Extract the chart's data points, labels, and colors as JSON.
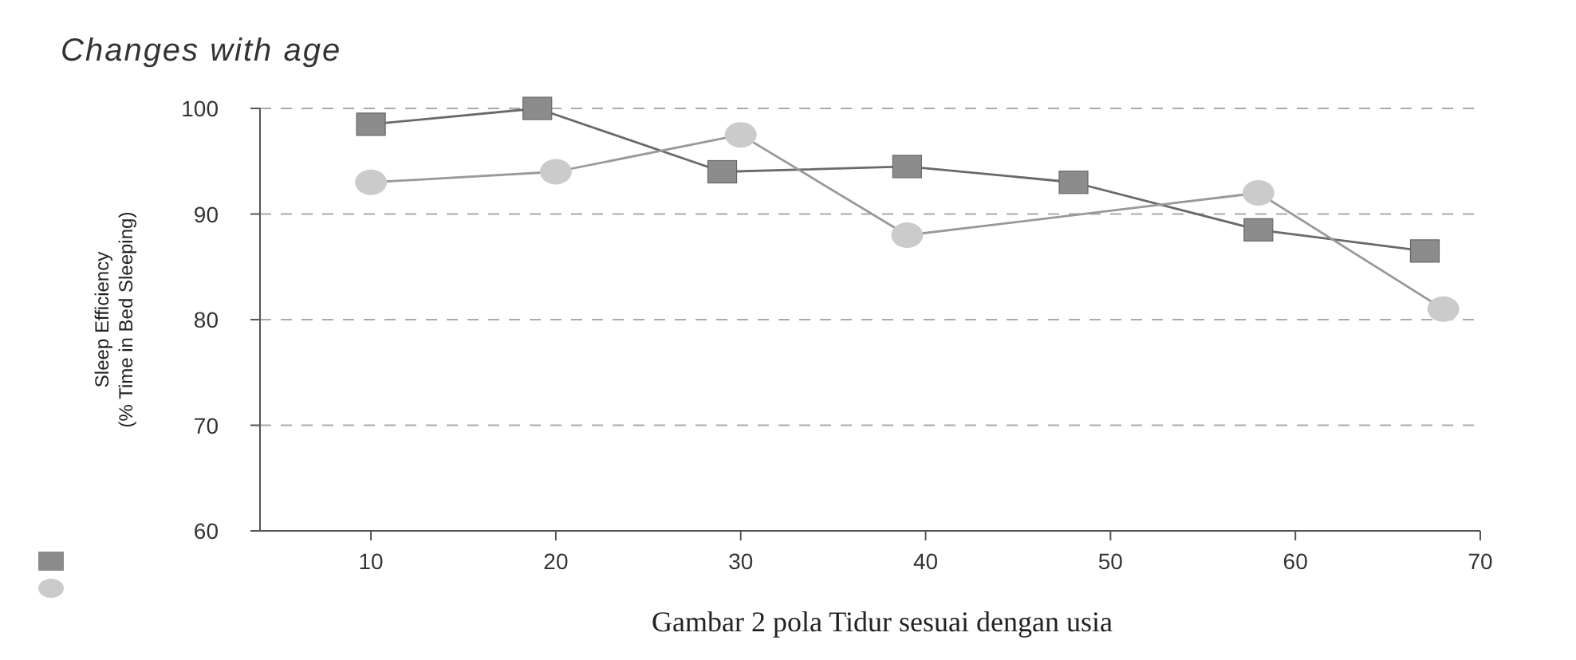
{
  "chart_data": {
    "type": "line",
    "title": "Changes with age",
    "ylabel": "Sleep Efficiency\n(% Time in Bed Sleeping)",
    "xlim": [
      4,
      70
    ],
    "xticks": [
      10,
      20,
      30,
      40,
      50,
      60,
      70
    ],
    "ylim": [
      60,
      100
    ],
    "yticks": [
      60,
      70,
      80,
      90,
      100
    ],
    "grid": "y",
    "line_style": "solid",
    "series": [
      {
        "color": "#8c8c8c",
        "marker": "square",
        "x": [
          10,
          19,
          29,
          39,
          48,
          58,
          67
        ],
        "values": [
          98.5,
          100,
          94,
          94.5,
          93,
          88.5,
          86.5
        ]
      },
      {
        "color": "#cbcbcb",
        "marker": "circle",
        "x": [
          10,
          20,
          30,
          39,
          58,
          68
        ],
        "values": [
          93,
          94,
          97.5,
          88,
          92,
          81
        ]
      }
    ],
    "annotations": [
      "Gambar 2 pola Tidur sesuai dengan usia"
    ]
  }
}
